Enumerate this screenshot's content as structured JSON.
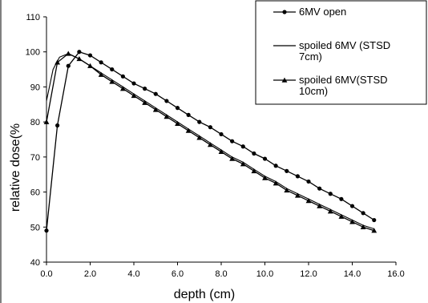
{
  "chart_data": {
    "type": "line",
    "xlabel": "depth (cm)",
    "ylabel": "relative dose(%",
    "xlim": [
      0,
      16
    ],
    "ylim": [
      40,
      110
    ],
    "x_ticks": [
      "0.0",
      "2.0",
      "4.0",
      "6.0",
      "8.0",
      "10.0",
      "12.0",
      "14.0",
      "16.0"
    ],
    "y_ticks": [
      "40",
      "50",
      "60",
      "70",
      "80",
      "90",
      "100",
      "110"
    ],
    "grid": false,
    "legend_position": "top-right",
    "series": [
      {
        "name": "6MV open",
        "marker": "circle",
        "points": [
          [
            0,
            49
          ],
          [
            0.5,
            79
          ],
          [
            1.0,
            96
          ],
          [
            1.5,
            100
          ],
          [
            2.0,
            99
          ],
          [
            2.5,
            97
          ],
          [
            3.0,
            95
          ],
          [
            3.5,
            93
          ],
          [
            4.0,
            91
          ],
          [
            4.5,
            89.5
          ],
          [
            5.0,
            88
          ],
          [
            5.5,
            86
          ],
          [
            6.0,
            84
          ],
          [
            6.5,
            82
          ],
          [
            7.0,
            80
          ],
          [
            7.5,
            78.5
          ],
          [
            8.0,
            76.5
          ],
          [
            8.5,
            74.5
          ],
          [
            9.0,
            73
          ],
          [
            9.5,
            71
          ],
          [
            10.0,
            69.5
          ],
          [
            10.5,
            67.5
          ],
          [
            11.0,
            66
          ],
          [
            11.5,
            64.5
          ],
          [
            12.0,
            63
          ],
          [
            12.5,
            61
          ],
          [
            13.0,
            59.5
          ],
          [
            13.5,
            58
          ],
          [
            14.0,
            56
          ],
          [
            14.5,
            54
          ],
          [
            15.0,
            52
          ]
        ]
      },
      {
        "name": "spoiled 6MV (STSD 7cm)",
        "marker": "none",
        "points": [
          [
            0,
            86
          ],
          [
            0.3,
            95
          ],
          [
            0.6,
            98.5
          ],
          [
            1.0,
            99.5
          ],
          [
            1.5,
            98
          ],
          [
            2.0,
            96
          ],
          [
            2.5,
            94
          ],
          [
            3.0,
            92
          ],
          [
            3.5,
            90
          ],
          [
            4.0,
            88
          ],
          [
            4.5,
            86
          ],
          [
            5.0,
            84
          ],
          [
            5.5,
            82
          ],
          [
            6.0,
            80
          ],
          [
            6.5,
            78
          ],
          [
            7.0,
            76
          ],
          [
            7.5,
            74
          ],
          [
            8.0,
            72
          ],
          [
            8.5,
            70
          ],
          [
            9.0,
            68.5
          ],
          [
            9.5,
            66.5
          ],
          [
            10.0,
            64.5
          ],
          [
            10.5,
            63
          ],
          [
            11.0,
            61
          ],
          [
            11.5,
            59.5
          ],
          [
            12.0,
            58
          ],
          [
            12.5,
            56.5
          ],
          [
            13.0,
            55
          ],
          [
            13.5,
            53.5
          ],
          [
            14.0,
            52
          ],
          [
            14.5,
            50.5
          ],
          [
            15.0,
            49.5
          ]
        ]
      },
      {
        "name": "spoiled 6MV(STSD 10cm)",
        "marker": "triangle",
        "points": [
          [
            0,
            80
          ],
          [
            0.5,
            97
          ],
          [
            1.0,
            99.5
          ],
          [
            1.5,
            98
          ],
          [
            2.0,
            96
          ],
          [
            2.5,
            93.5
          ],
          [
            3.0,
            91.5
          ],
          [
            3.5,
            89.5
          ],
          [
            4.0,
            87.5
          ],
          [
            4.5,
            85.5
          ],
          [
            5.0,
            83.5
          ],
          [
            5.5,
            81.5
          ],
          [
            6.0,
            79.5
          ],
          [
            6.5,
            77.5
          ],
          [
            7.0,
            75.5
          ],
          [
            7.5,
            73.5
          ],
          [
            8.0,
            71.5
          ],
          [
            8.5,
            69.5
          ],
          [
            9.0,
            68
          ],
          [
            9.5,
            66
          ],
          [
            10.0,
            64
          ],
          [
            10.5,
            62.5
          ],
          [
            11.0,
            60.5
          ],
          [
            11.5,
            59
          ],
          [
            12.0,
            57.5
          ],
          [
            12.5,
            56
          ],
          [
            13.0,
            54.5
          ],
          [
            13.5,
            53
          ],
          [
            14.0,
            51.5
          ],
          [
            14.5,
            50
          ],
          [
            15.0,
            49
          ]
        ]
      }
    ]
  },
  "legend": {
    "entries": [
      {
        "lines": [
          "6MV open"
        ]
      },
      {
        "lines": [
          "spoiled 6MV (STSD",
          "7cm)"
        ]
      },
      {
        "lines": [
          "spoiled 6MV(STSD",
          "10cm)"
        ]
      }
    ]
  },
  "colors": {
    "series": "#000000",
    "axis": "#000000",
    "background": "#ffffff"
  }
}
